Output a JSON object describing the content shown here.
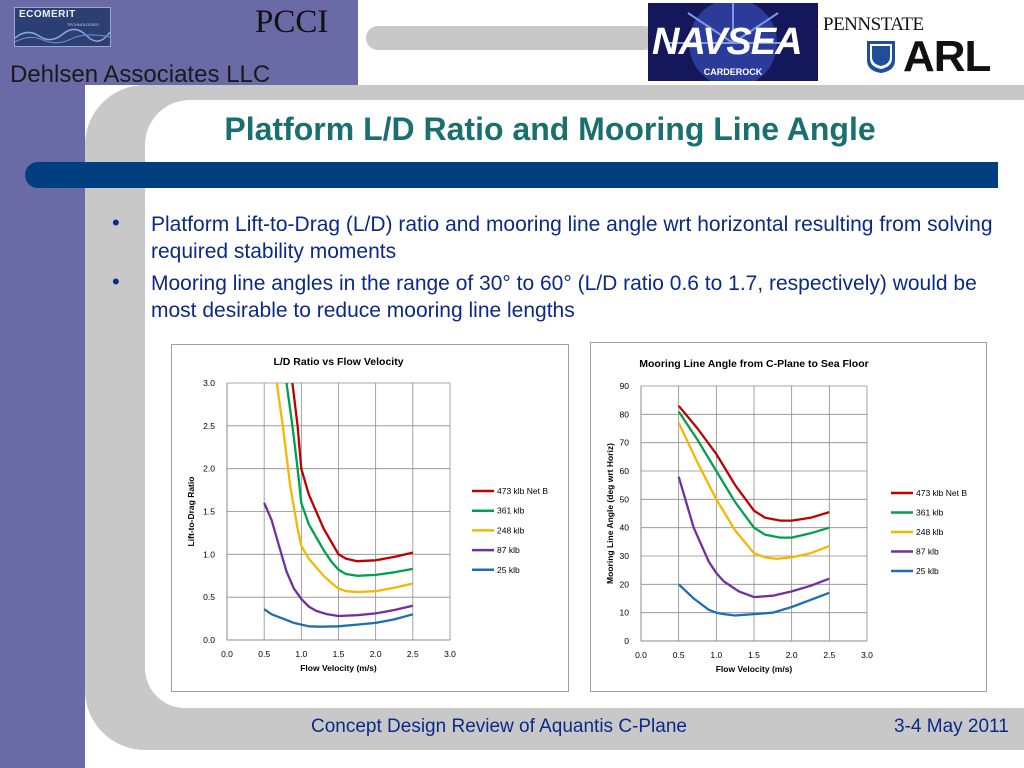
{
  "header": {
    "ecomerit_logo": "ECOMERIT",
    "ecomerit_sub": "TECHNOLOGIES",
    "pcci_logo": "PCCI",
    "company": "Dehlsen Associates LLC",
    "navsea_logo": "NAVSEA",
    "navsea_sub": "CARDEROCK",
    "pennstate_logo": "PENNSTATE",
    "arl_logo": "ARL"
  },
  "slide": {
    "title": "Platform L/D Ratio and Mooring Line Angle",
    "bullets": [
      "Platform Lift-to-Drag (L/D) ratio and mooring line angle wrt horizontal resulting from solving required stability moments",
      "Mooring line angles in the range of 30° to 60° (L/D ratio 0.6 to 1.7, respectively) would be most desirable to reduce mooring line lengths"
    ],
    "bullet_symbol": "•"
  },
  "footer": {
    "text": "Concept Design Review of Aquantis C-Plane",
    "date": "3-4 May 2011"
  },
  "colors": {
    "sidebar": "#6a6aa6",
    "title": "#1b6f6f",
    "bullet_text": "#0b2a88",
    "blue_bar": "#003f7f"
  },
  "chart_data": [
    {
      "type": "line",
      "title": "L/D Ratio vs Flow Velocity",
      "xlabel": "Flow Velocity (m/s)",
      "ylabel": "Lift-to-Drag Ratio",
      "xlim": [
        0.0,
        3.0
      ],
      "ylim": [
        0.0,
        3.0
      ],
      "xticks": [
        "0.0",
        "0.5",
        "1.0",
        "1.5",
        "2.0",
        "2.5",
        "3.0"
      ],
      "yticks": [
        "0.0",
        "0.5",
        "1.0",
        "1.5",
        "2.0",
        "2.5",
        "3.0"
      ],
      "grid": true,
      "legend": "right",
      "series": [
        {
          "name": "473 klb Net B",
          "color": "#c00000",
          "points": [
            [
              0.88,
              3.0
            ],
            [
              0.95,
              2.5
            ],
            [
              1.0,
              2.0
            ],
            [
              1.1,
              1.7
            ],
            [
              1.2,
              1.5
            ],
            [
              1.3,
              1.3
            ],
            [
              1.4,
              1.15
            ],
            [
              1.5,
              1.0
            ],
            [
              1.6,
              0.95
            ],
            [
              1.75,
              0.92
            ],
            [
              2.0,
              0.93
            ],
            [
              2.25,
              0.97
            ],
            [
              2.5,
              1.02
            ]
          ]
        },
        {
          "name": "361 klb",
          "color": "#00a050",
          "points": [
            [
              0.8,
              3.0
            ],
            [
              0.88,
              2.5
            ],
            [
              0.95,
              2.0
            ],
            [
              1.0,
              1.6
            ],
            [
              1.1,
              1.35
            ],
            [
              1.2,
              1.2
            ],
            [
              1.3,
              1.05
            ],
            [
              1.4,
              0.92
            ],
            [
              1.5,
              0.82
            ],
            [
              1.6,
              0.77
            ],
            [
              1.75,
              0.75
            ],
            [
              2.0,
              0.76
            ],
            [
              2.25,
              0.79
            ],
            [
              2.5,
              0.83
            ]
          ]
        },
        {
          "name": "248 klb",
          "color": "#f5b800",
          "points": [
            [
              0.67,
              3.0
            ],
            [
              0.75,
              2.5
            ],
            [
              0.85,
              1.8
            ],
            [
              0.95,
              1.3
            ],
            [
              1.0,
              1.1
            ],
            [
              1.1,
              0.95
            ],
            [
              1.2,
              0.85
            ],
            [
              1.3,
              0.75
            ],
            [
              1.4,
              0.67
            ],
            [
              1.5,
              0.6
            ],
            [
              1.6,
              0.57
            ],
            [
              1.75,
              0.56
            ],
            [
              2.0,
              0.57
            ],
            [
              2.25,
              0.61
            ],
            [
              2.5,
              0.66
            ]
          ]
        },
        {
          "name": "87 klb",
          "color": "#7030a0",
          "points": [
            [
              0.5,
              1.6
            ],
            [
              0.6,
              1.4
            ],
            [
              0.7,
              1.1
            ],
            [
              0.8,
              0.8
            ],
            [
              0.9,
              0.6
            ],
            [
              1.0,
              0.48
            ],
            [
              1.1,
              0.39
            ],
            [
              1.2,
              0.34
            ],
            [
              1.35,
              0.3
            ],
            [
              1.5,
              0.28
            ],
            [
              1.75,
              0.29
            ],
            [
              2.0,
              0.31
            ],
            [
              2.25,
              0.35
            ],
            [
              2.5,
              0.4
            ]
          ]
        },
        {
          "name": "25 klb",
          "color": "#1f6eb4",
          "points": [
            [
              0.5,
              0.36
            ],
            [
              0.6,
              0.3
            ],
            [
              0.75,
              0.25
            ],
            [
              0.9,
              0.2
            ],
            [
              1.0,
              0.18
            ],
            [
              1.1,
              0.16
            ],
            [
              1.25,
              0.155
            ],
            [
              1.5,
              0.16
            ],
            [
              1.75,
              0.18
            ],
            [
              2.0,
              0.2
            ],
            [
              2.25,
              0.24
            ],
            [
              2.5,
              0.3
            ]
          ]
        }
      ]
    },
    {
      "type": "line",
      "title": "Mooring Line Angle from C-Plane to Sea Floor",
      "xlabel": "Flow Velocity (m/s)",
      "ylabel": "Mooring Line Angle  (deg wrt Horiz)",
      "xlim": [
        0.0,
        3.0
      ],
      "ylim": [
        0,
        90
      ],
      "xticks": [
        "0.0",
        "0.5",
        "1.0",
        "1.5",
        "2.0",
        "2.5",
        "3.0"
      ],
      "yticks": [
        "0",
        "10",
        "20",
        "30",
        "40",
        "50",
        "60",
        "70",
        "80",
        "90"
      ],
      "grid": true,
      "legend": "right",
      "series": [
        {
          "name": "473 klb Net B",
          "color": "#c00000",
          "points": [
            [
              0.5,
              83
            ],
            [
              0.75,
              75
            ],
            [
              1.0,
              66
            ],
            [
              1.25,
              55
            ],
            [
              1.5,
              46
            ],
            [
              1.65,
              43.5
            ],
            [
              1.85,
              42.5
            ],
            [
              2.0,
              42.5
            ],
            [
              2.25,
              43.5
            ],
            [
              2.5,
              45.5
            ]
          ]
        },
        {
          "name": "361 klb",
          "color": "#00a050",
          "points": [
            [
              0.5,
              81
            ],
            [
              0.75,
              71
            ],
            [
              1.0,
              60
            ],
            [
              1.25,
              49
            ],
            [
              1.5,
              40
            ],
            [
              1.65,
              37.5
            ],
            [
              1.85,
              36.5
            ],
            [
              2.0,
              36.5
            ],
            [
              2.25,
              38
            ],
            [
              2.5,
              40
            ]
          ]
        },
        {
          "name": "248 klb",
          "color": "#f5b800",
          "points": [
            [
              0.5,
              77
            ],
            [
              0.75,
              63
            ],
            [
              1.0,
              50
            ],
            [
              1.25,
              39
            ],
            [
              1.5,
              31
            ],
            [
              1.65,
              29.5
            ],
            [
              1.8,
              29
            ],
            [
              2.0,
              29.5
            ],
            [
              2.25,
              31
            ],
            [
              2.5,
              33.5
            ]
          ]
        },
        {
          "name": "87 klb",
          "color": "#7030a0",
          "points": [
            [
              0.5,
              58
            ],
            [
              0.7,
              40
            ],
            [
              0.9,
              28
            ],
            [
              1.0,
              24
            ],
            [
              1.1,
              21
            ],
            [
              1.3,
              17.5
            ],
            [
              1.5,
              15.5
            ],
            [
              1.75,
              16
            ],
            [
              2.0,
              17.5
            ],
            [
              2.25,
              19.5
            ],
            [
              2.5,
              22
            ]
          ]
        },
        {
          "name": "25 klb",
          "color": "#1f6eb4",
          "points": [
            [
              0.5,
              20
            ],
            [
              0.7,
              15
            ],
            [
              0.9,
              11
            ],
            [
              1.0,
              10
            ],
            [
              1.1,
              9.5
            ],
            [
              1.25,
              9
            ],
            [
              1.5,
              9.5
            ],
            [
              1.75,
              10
            ],
            [
              2.0,
              12
            ],
            [
              2.25,
              14.5
            ],
            [
              2.5,
              17
            ]
          ]
        }
      ]
    }
  ]
}
